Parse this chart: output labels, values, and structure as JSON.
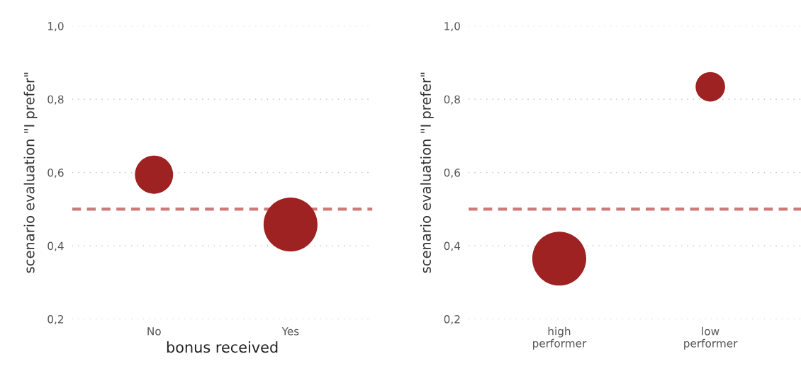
{
  "chart_data": [
    {
      "type": "bubble",
      "xlabel": "bonus received",
      "ylabel": "scenario evaluation \"I prefer\"",
      "categories": [
        "No",
        "Yes"
      ],
      "values": [
        0.594,
        0.458
      ],
      "sizes": [
        0.5,
        1
      ],
      "color": "#9e2222",
      "ylim": [
        0.2,
        1.0
      ],
      "yticks": [
        {
          "value": 0.2,
          "label": "0,2"
        },
        {
          "value": 0.4,
          "label": "0,4"
        },
        {
          "value": 0.6,
          "label": "0,6"
        },
        {
          "value": 0.8,
          "label": "0,8"
        },
        {
          "value": 1.0,
          "label": "1,0"
        }
      ],
      "ref_lines": [
        {
          "axis": "y",
          "value": 0.5,
          "color": "#cc7a7a",
          "line_style": "dashed"
        }
      ],
      "grid": "y"
    },
    {
      "type": "bubble",
      "ylabel": "scenario evaluation \"I prefer\"",
      "categories": [
        "high\nperformer",
        "low\nperformer"
      ],
      "values": [
        0.365,
        0.834
      ],
      "sizes": [
        1,
        0.3
      ],
      "color": "#9e2222",
      "ylim": [
        0.2,
        1.0
      ],
      "yticks": [
        {
          "value": 0.2,
          "label": "0,2"
        },
        {
          "value": 0.4,
          "label": "0,4"
        },
        {
          "value": 0.6,
          "label": "0,6"
        },
        {
          "value": 0.8,
          "label": "0,8"
        },
        {
          "value": 1.0,
          "label": "1,0"
        }
      ],
      "ref_lines": [
        {
          "axis": "y",
          "value": 0.5,
          "color": "#cc7a7a",
          "line_style": "dashed"
        }
      ],
      "grid": "y"
    }
  ]
}
